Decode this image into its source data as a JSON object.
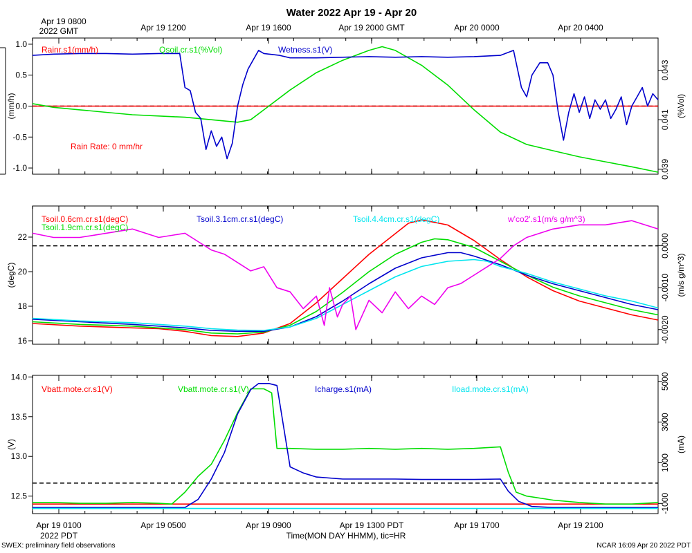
{
  "title": "Water 2022 Apr 19 - Apr 20",
  "top_axis": {
    "first_label_line1": "Apr 19 0800",
    "first_label_line2": "2022 GMT",
    "labels": [
      "Apr 19 1200",
      "Apr 19 1600",
      "Apr 19 2000 GMT",
      "Apr 20 0000",
      "Apr 20 0400"
    ]
  },
  "bottom_axis": {
    "labels": [
      "Apr 19 0100",
      "Apr 19 0500",
      "Apr 19 0900",
      "Apr 19 1300 PDT",
      "Apr 19 1700",
      "Apr 19 2100"
    ],
    "year_label": "2022 PDT",
    "xlabel": "Time(MON DAY HHMM), tic=HR"
  },
  "footer": {
    "left": "SWEX: preliminary field observations",
    "right": "NCAR 16:09 Apr 20 2022 PDT"
  },
  "colors": {
    "red": "#ff0000",
    "green": "#00dd00",
    "blue": "#0000cc",
    "cyan": "#00e5ee",
    "magenta": "#ee00ee",
    "black": "#000000"
  },
  "chart_data": [
    {
      "type": "line",
      "x_unit": "hours since Apr 19 0000 PDT",
      "xlim": [
        0.2,
        24.0
      ],
      "left_axis": {
        "label": "(mm/h)",
        "ticks": [
          "1.0",
          "0.5",
          "0.0",
          "-0.5",
          "-1.0"
        ],
        "tick_values": [
          1.0,
          0.5,
          0.0,
          -0.5,
          -1.0
        ],
        "ylim": [
          -1.1,
          1.1
        ]
      },
      "right_axis": {
        "label": "(%Vol)",
        "ticks": [
          "0.043",
          "0.041",
          "0.039"
        ],
        "tick_values": [
          0.043,
          0.041,
          0.039
        ],
        "ylim": [
          0.0388,
          0.0443
        ]
      },
      "zero_line": 0.0,
      "annotation": "Rain Rate: 0 mm/hr",
      "series": [
        {
          "name": "Rainr.s1(mm/h)",
          "color": "red",
          "axis": "left",
          "x": [
            0.2,
            24.0
          ],
          "y": [
            0.0,
            0.0
          ]
        },
        {
          "name": "Qsoil.cr.s1(%Vol)",
          "color": "green",
          "axis": "right",
          "x": [
            0.2,
            1,
            2,
            3,
            4,
            5,
            6,
            7,
            8,
            8.5,
            9,
            10,
            11,
            12,
            13,
            13.5,
            14,
            15,
            16,
            17,
            18,
            19,
            20,
            21,
            22,
            23,
            24
          ],
          "y": [
            0.04165,
            0.0415,
            0.0414,
            0.0413,
            0.0412,
            0.04115,
            0.0411,
            0.041,
            0.0409,
            0.041,
            0.0414,
            0.0422,
            0.0429,
            0.0434,
            0.0438,
            0.04395,
            0.0438,
            0.0432,
            0.0424,
            0.0414,
            0.0405,
            0.04,
            0.03975,
            0.0395,
            0.0393,
            0.0391,
            0.03888
          ]
        },
        {
          "name": "Wetness.s1(V)",
          "color": "blue",
          "axis": "left",
          "x": [
            0.2,
            1,
            2,
            3,
            4,
            5,
            5.8,
            6,
            6.2,
            6.4,
            6.6,
            6.8,
            7.0,
            7.2,
            7.4,
            7.6,
            7.8,
            8.0,
            8.2,
            8.4,
            8.6,
            8.8,
            9.0,
            9.2,
            9.4,
            9.6,
            10,
            11,
            12,
            13,
            14,
            15,
            16,
            17,
            18,
            18.5,
            18.8,
            19.0,
            19.2,
            19.5,
            19.8,
            20.0,
            20.2,
            20.4,
            20.6,
            20.8,
            21.0,
            21.2,
            21.4,
            21.6,
            21.8,
            22.0,
            22.2,
            22.4,
            22.6,
            22.8,
            23.0,
            23.2,
            23.4,
            23.6,
            23.8,
            24.0
          ],
          "y": [
            0.82,
            0.84,
            0.85,
            0.85,
            0.84,
            0.85,
            0.85,
            0.3,
            0.25,
            -0.1,
            -0.2,
            -0.7,
            -0.4,
            -0.65,
            -0.5,
            -0.85,
            -0.6,
            0.0,
            0.35,
            0.6,
            0.75,
            0.9,
            0.85,
            0.84,
            0.83,
            0.82,
            0.78,
            0.78,
            0.79,
            0.8,
            0.79,
            0.8,
            0.79,
            0.8,
            0.82,
            0.9,
            0.3,
            0.15,
            0.5,
            0.7,
            0.7,
            0.5,
            -0.1,
            -0.55,
            -0.1,
            0.2,
            -0.1,
            0.15,
            -0.2,
            0.1,
            -0.05,
            0.1,
            -0.2,
            -0.05,
            0.15,
            -0.3,
            0.0,
            0.15,
            0.3,
            0.0,
            0.2,
            0.1
          ]
        }
      ]
    },
    {
      "type": "line",
      "x_unit": "hours since Apr 19 0000 PDT",
      "xlim": [
        0.2,
        24.0
      ],
      "left_axis": {
        "label": "(degC)",
        "ticks": [
          "22",
          "20",
          "18",
          "16"
        ],
        "tick_values": [
          22,
          20,
          18,
          16
        ],
        "ylim": [
          15.8,
          23.8
        ]
      },
      "right_axis": {
        "label": "(m/s g/m^3)",
        "ticks": [
          "0.0000",
          "-0.0010",
          "-0.0020"
        ],
        "tick_values": [
          0.0,
          -0.001,
          -0.002
        ],
        "ylim": [
          -0.00235,
          0.00095
        ]
      },
      "zero_line": 0.0,
      "series": [
        {
          "name": "Tsoil.0.6cm.cr.s1(degC)",
          "color": "red",
          "axis": "left",
          "x": [
            0.2,
            2,
            4,
            5,
            6,
            7,
            8,
            9,
            10,
            11,
            12,
            13,
            14,
            14.5,
            15,
            16,
            17,
            18,
            19,
            20,
            21,
            22,
            23,
            24
          ],
          "y": [
            17.0,
            16.85,
            16.75,
            16.7,
            16.55,
            16.3,
            16.25,
            16.45,
            17.0,
            18.2,
            19.6,
            21.0,
            22.2,
            22.8,
            23.0,
            22.7,
            21.8,
            20.7,
            19.7,
            18.9,
            18.3,
            17.9,
            17.5,
            17.2
          ]
        },
        {
          "name": "Tsoil.1.9cm.cr.s1(degC)",
          "color": "green",
          "axis": "left",
          "x": [
            0.2,
            2,
            4,
            6,
            7,
            8,
            9,
            10,
            11,
            12,
            13,
            14,
            15,
            15.5,
            16,
            17,
            18,
            19,
            20,
            21,
            22,
            23,
            24
          ],
          "y": [
            17.1,
            16.95,
            16.85,
            16.65,
            16.45,
            16.4,
            16.5,
            16.9,
            17.7,
            18.8,
            20.0,
            21.0,
            21.7,
            21.9,
            21.85,
            21.4,
            20.6,
            19.8,
            19.1,
            18.6,
            18.2,
            17.8,
            17.5
          ]
        },
        {
          "name": "Tsoil.3.1cm.cr.s1(degC)",
          "color": "blue",
          "axis": "left",
          "x": [
            0.2,
            2,
            4,
            6,
            7,
            8,
            9,
            10,
            11,
            12,
            13,
            14,
            15,
            16,
            16.5,
            17,
            18,
            19,
            20,
            21,
            22,
            23,
            24
          ],
          "y": [
            17.25,
            17.1,
            16.95,
            16.75,
            16.6,
            16.55,
            16.55,
            16.8,
            17.4,
            18.3,
            19.3,
            20.2,
            20.8,
            21.1,
            21.1,
            20.9,
            20.4,
            19.8,
            19.3,
            18.9,
            18.5,
            18.1,
            17.8
          ]
        },
        {
          "name": "Tsoil.4.4cm.cr.s1(degC)",
          "color": "cyan",
          "axis": "left",
          "x": [
            0.2,
            2,
            4,
            6,
            7,
            8,
            9,
            10,
            11,
            12,
            13,
            14,
            15,
            16,
            17,
            17.5,
            18,
            19,
            20,
            21,
            22,
            23,
            24
          ],
          "y": [
            17.3,
            17.15,
            17.05,
            16.85,
            16.7,
            16.62,
            16.6,
            16.8,
            17.3,
            18.1,
            18.9,
            19.7,
            20.3,
            20.6,
            20.7,
            20.6,
            20.3,
            19.9,
            19.4,
            19.0,
            18.6,
            18.3,
            17.9
          ]
        },
        {
          "name": "w'co2'.s1(m/s g/m^3)",
          "color": "magenta",
          "axis": "right",
          "x": [
            0.2,
            1,
            2,
            3,
            4,
            5,
            6,
            6.5,
            7,
            7.5,
            8,
            8.5,
            9,
            9.5,
            10,
            10.5,
            11,
            11.3,
            11.5,
            11.8,
            12,
            12.3,
            12.5,
            13,
            13.5,
            14,
            14.5,
            15,
            15.5,
            16,
            16.5,
            17,
            17.5,
            18,
            18.5,
            19,
            19.5,
            20,
            21,
            22,
            23,
            24
          ],
          "y": [
            0.0003,
            0.0002,
            0.0002,
            0.0003,
            0.0004,
            0.0002,
            0.0003,
            0.0001,
            -0.0001,
            -0.0002,
            -0.0004,
            -0.0006,
            -0.0005,
            -0.001,
            -0.0011,
            -0.0015,
            -0.0012,
            -0.0019,
            -0.001,
            -0.0017,
            -0.0014,
            -0.0012,
            -0.002,
            -0.0013,
            -0.0016,
            -0.0011,
            -0.0015,
            -0.0012,
            -0.0014,
            -0.001,
            -0.0009,
            -0.0007,
            -0.0005,
            -0.0003,
            0.0,
            0.0002,
            0.0003,
            0.0004,
            0.0005,
            0.0005,
            0.0006,
            0.0004
          ]
        }
      ]
    },
    {
      "type": "line",
      "x_unit": "hours since Apr 19 0000 PDT",
      "xlim": [
        0.2,
        24.0
      ],
      "left_axis": {
        "label": "(V)",
        "ticks": [
          "14.0",
          "13.5",
          "13.0",
          "12.5"
        ],
        "tick_values": [
          14.0,
          13.5,
          13.0,
          12.5
        ],
        "ylim": [
          12.28,
          14.02
        ]
      },
      "right_axis": {
        "label": "(mA)",
        "ticks": [
          "5000",
          "3000",
          "1000",
          "-1000"
        ],
        "tick_values": [
          5000,
          3000,
          1000,
          -1000
        ],
        "ylim": [
          -1500,
          5300
        ]
      },
      "zero_line": 0.0,
      "series": [
        {
          "name": "Vbatt.mote.cr.s1(V)",
          "color": "red",
          "axis": "left",
          "x": [
            0.2,
            24.0
          ],
          "y": [
            12.4,
            12.4
          ]
        },
        {
          "name": "Vbatt.mote.cr.s1(V)",
          "color": "green",
          "axis": "left",
          "x": [
            0.2,
            1,
            2,
            3,
            4,
            5,
            5.5,
            6,
            6.5,
            7,
            7.5,
            8,
            8.5,
            9,
            9.3,
            9.5,
            10,
            11,
            12,
            13,
            14,
            15,
            16,
            17,
            18,
            18.3,
            18.6,
            19,
            20,
            21,
            22,
            23,
            24
          ],
          "y": [
            12.42,
            12.42,
            12.41,
            12.41,
            12.42,
            12.41,
            12.4,
            12.55,
            12.75,
            12.9,
            13.2,
            13.55,
            13.85,
            13.85,
            13.8,
            13.1,
            13.1,
            13.09,
            13.09,
            13.1,
            13.09,
            13.1,
            13.09,
            13.1,
            13.12,
            12.8,
            12.55,
            12.5,
            12.45,
            12.42,
            12.4,
            12.4,
            12.42
          ]
        },
        {
          "name": "Icharge.s1(mA)",
          "color": "blue",
          "axis": "right",
          "x": [
            0.2,
            1,
            2,
            3,
            4,
            5,
            6,
            6.5,
            7,
            7.5,
            8,
            8.5,
            8.8,
            9.2,
            9.5,
            10,
            10.5,
            11,
            12,
            13,
            14,
            15,
            16,
            17,
            18,
            18.3,
            18.7,
            19.2,
            20,
            21,
            22,
            23,
            24
          ],
          "y": [
            -1200,
            -1200,
            -1200,
            -1200,
            -1200,
            -1200,
            -1200,
            -800,
            200,
            1500,
            3400,
            4600,
            4900,
            4900,
            4800,
            800,
            500,
            300,
            200,
            200,
            200,
            180,
            180,
            180,
            200,
            -400,
            -900,
            -1150,
            -1200,
            -1200,
            -1200,
            -1200,
            -1200
          ]
        },
        {
          "name": "Iload.mote.cr.s1(mA)",
          "color": "cyan",
          "axis": "right",
          "x": [
            0.2,
            24.0
          ],
          "y": [
            -1250,
            -1250
          ]
        }
      ]
    }
  ]
}
